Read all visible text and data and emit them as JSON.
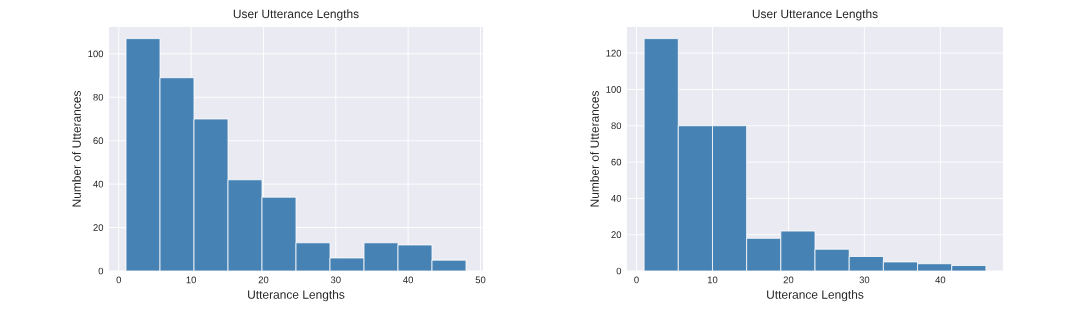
{
  "chart_data": [
    {
      "type": "histogram",
      "title": "User Utterance Lengths",
      "xlabel": "Utterance Lengths",
      "ylabel": "Number of Utterances",
      "bins": [
        1,
        5.7,
        10.4,
        15.1,
        19.8,
        24.5,
        29.2,
        33.9,
        38.6,
        43.3,
        48
      ],
      "values": [
        107,
        89,
        70,
        42,
        34,
        13,
        6,
        13,
        12,
        5
      ],
      "color": "#4682b4",
      "xlim": [
        -1.35,
        50.35
      ],
      "ylim": [
        0,
        112.35
      ],
      "xticks": [
        0,
        10,
        20,
        30,
        40,
        50
      ],
      "yticks": [
        0,
        20,
        40,
        60,
        80,
        100
      ],
      "grid": true
    },
    {
      "type": "histogram",
      "title": "User Utterance Lengths",
      "xlabel": "Utterance Lengths",
      "ylabel": "Number of Utterances",
      "bins": [
        1,
        5.5,
        10,
        14.5,
        19,
        23.5,
        28,
        32.5,
        37,
        41.5,
        46
      ],
      "values": [
        128,
        80,
        80,
        18,
        22,
        12,
        8,
        5,
        4,
        3
      ],
      "color": "#4682b4",
      "xlim": [
        -1.25,
        48.25
      ],
      "ylim": [
        0,
        134.4
      ],
      "xticks": [
        0,
        10,
        20,
        30,
        40
      ],
      "yticks": [
        0,
        20,
        40,
        60,
        80,
        100,
        120
      ],
      "grid": true
    }
  ]
}
